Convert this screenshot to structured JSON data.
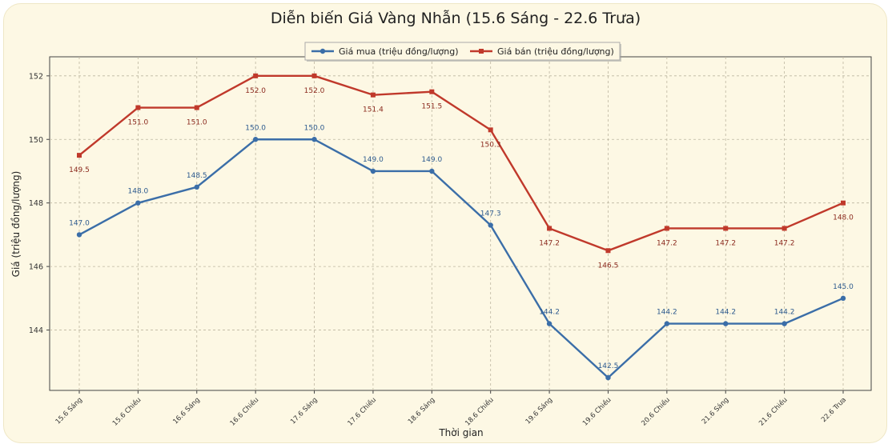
{
  "chart_data": {
    "type": "line",
    "title": "Diễn biến Giá Vàng Nhẫn (15.6 Sáng - 22.6 Trưa)",
    "xlabel": "Thời gian",
    "ylabel": "Giá (triệu đồng/lượng)",
    "categories": [
      "15.6 Sáng",
      "15.6 Chiều",
      "16.6 Sáng",
      "16.6 Chiều",
      "17.6 Sáng",
      "17.6 Chiều",
      "18.6 Sáng",
      "18.6 Chiều",
      "19.6 Sáng",
      "19.6 Chiều",
      "20.6 Chiều",
      "21.6 Sáng",
      "21.6 Chiều",
      "22.6 Trưa"
    ],
    "series": [
      {
        "name": "Giá mua (triệu đồng/lượng)",
        "color": "#3b6ea8",
        "marker": "circle",
        "values": [
          147.0,
          148.0,
          148.5,
          150.0,
          150.0,
          149.0,
          149.0,
          147.3,
          144.2,
          142.5,
          144.2,
          144.2,
          144.2,
          145.0
        ],
        "labels": [
          "147.0",
          "148.0",
          "148.5",
          "150.0",
          "150.0",
          "149.0",
          "149.0",
          "147.3",
          "144.2",
          "142.5",
          "144.2",
          "144.2",
          "144.2",
          "145.0"
        ]
      },
      {
        "name": "Giá bán (triệu đồng/lượng)",
        "color": "#c0392b",
        "marker": "square",
        "values": [
          149.5,
          151.0,
          151.0,
          152.0,
          152.0,
          151.4,
          151.5,
          150.3,
          147.2,
          146.5,
          147.2,
          147.2,
          147.2,
          148.0
        ],
        "labels": [
          "149.5",
          "151.0",
          "151.0",
          "152.0",
          "152.0",
          "151.4",
          "151.5",
          "150.3",
          "147.2",
          "146.5",
          "147.2",
          "147.2",
          "147.2",
          "148.0"
        ]
      }
    ],
    "yticks": [
      "144",
      "146",
      "148",
      "150",
      "152"
    ],
    "ylim": [
      142.1,
      152.6
    ],
    "grid": true,
    "legend_position": "top-center"
  }
}
